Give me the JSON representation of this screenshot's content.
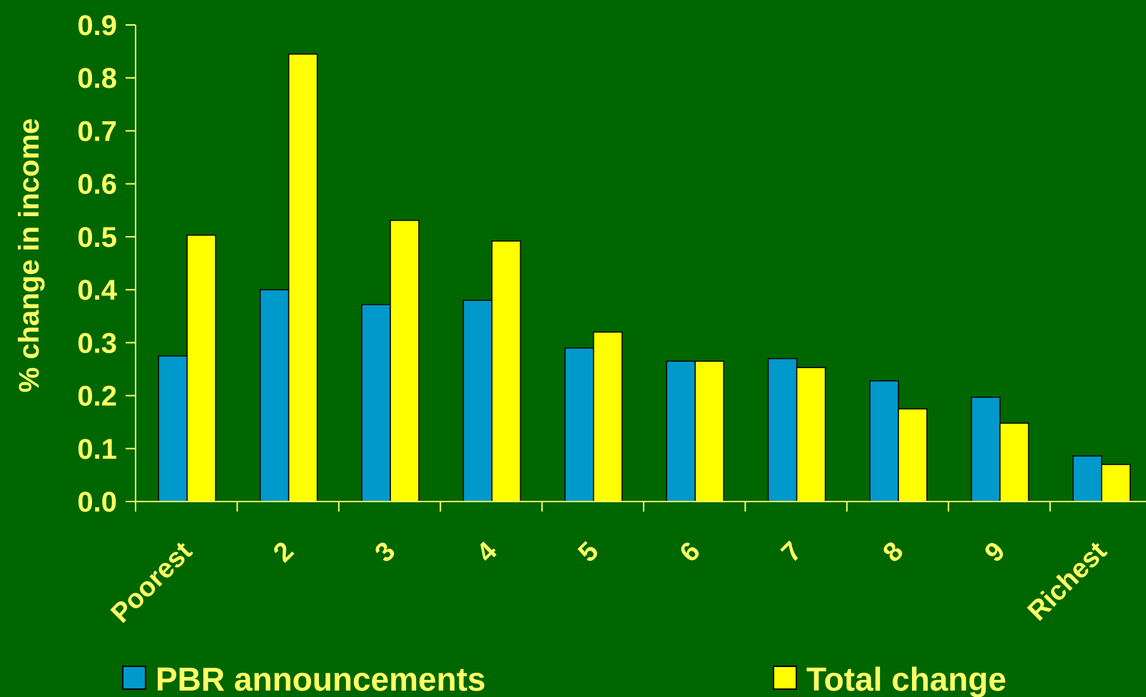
{
  "chart_data": {
    "type": "bar",
    "ylabel": "% change in income",
    "ylim": [
      0,
      0.9
    ],
    "yticks": [
      "0.0",
      "0.1",
      "0.2",
      "0.3",
      "0.4",
      "0.5",
      "0.6",
      "0.7",
      "0.8",
      "0.9"
    ],
    "categories": [
      "Poorest",
      "2",
      "3",
      "4",
      "5",
      "6",
      "7",
      "8",
      "9",
      "Richest"
    ],
    "series": [
      {
        "name": "PBR announcements",
        "color": "#0099cc",
        "values": [
          0.275,
          0.4,
          0.372,
          0.38,
          0.29,
          0.265,
          0.27,
          0.228,
          0.197,
          0.086
        ]
      },
      {
        "name": "Total change",
        "color": "#ffff00",
        "values": [
          0.503,
          0.845,
          0.531,
          0.492,
          0.32,
          0.265,
          0.253,
          0.175,
          0.148,
          0.07
        ]
      }
    ],
    "legend_position": "bottom",
    "grid": false,
    "background": "#006600",
    "text_color": "#ffff66",
    "axis_color": "#ffff66"
  }
}
